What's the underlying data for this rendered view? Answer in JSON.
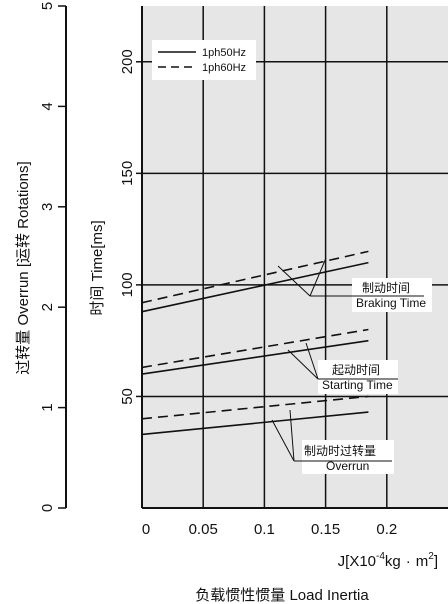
{
  "chart_data": {
    "type": "line",
    "xlabel": "J[X10⁻⁴kg · m²]",
    "xlabel_parts": {
      "prefix": "J[X10",
      "exp": "-4",
      "unit": "kg",
      "dot": "·",
      "unit2": "m",
      "exp2": "2",
      "close": "]"
    },
    "caption": "负载惯性惯量 Load Inertia",
    "ylabel_time": "时间 Time[ms]",
    "ylabel_overrun": "过转量 Overrun [运转 Rotations]",
    "x_ticks": [
      "0",
      "0.05",
      "0.1",
      "0.15",
      "0.2"
    ],
    "y_time_ticks": [
      "50",
      "100",
      "150",
      "200"
    ],
    "y_overrun_ticks": [
      "0",
      "1",
      "2",
      "3",
      "4",
      "5"
    ],
    "xlim": [
      0,
      0.25
    ],
    "ylim_time": [
      0,
      225
    ],
    "ylim_overrun": [
      0,
      5
    ],
    "grid": true,
    "legend_position": "top-left",
    "series": [
      {
        "name": "1ph50Hz",
        "dash": "solid",
        "x": [
          0,
          0.185
        ],
        "y": [
          88,
          110
        ],
        "group": "braking"
      },
      {
        "name": "1ph60Hz",
        "dash": "dashed",
        "x": [
          0,
          0.185
        ],
        "y": [
          92,
          115
        ],
        "group": "braking"
      },
      {
        "name": "1ph50Hz",
        "dash": "solid",
        "x": [
          0,
          0.185
        ],
        "y": [
          60,
          75
        ],
        "group": "starting"
      },
      {
        "name": "1ph60Hz",
        "dash": "dashed",
        "x": [
          0,
          0.185
        ],
        "y": [
          63,
          80
        ],
        "group": "starting"
      },
      {
        "name": "1ph50Hz",
        "dash": "solid",
        "x": [
          0,
          0.185
        ],
        "y": [
          33,
          43
        ],
        "group": "overrun"
      },
      {
        "name": "1ph60Hz",
        "dash": "dashed",
        "x": [
          0,
          0.185
        ],
        "y": [
          40,
          50
        ],
        "group": "overrun"
      }
    ],
    "legend": [
      {
        "label": "1ph50Hz",
        "dash": "solid"
      },
      {
        "label": "1ph60Hz",
        "dash": "dashed"
      }
    ],
    "annotations": [
      {
        "cn": "制动时间",
        "en": "Braking Time"
      },
      {
        "cn": "起动时间",
        "en": "Starting Time"
      },
      {
        "cn": "制动时过转量",
        "en": "Overrun"
      }
    ]
  }
}
